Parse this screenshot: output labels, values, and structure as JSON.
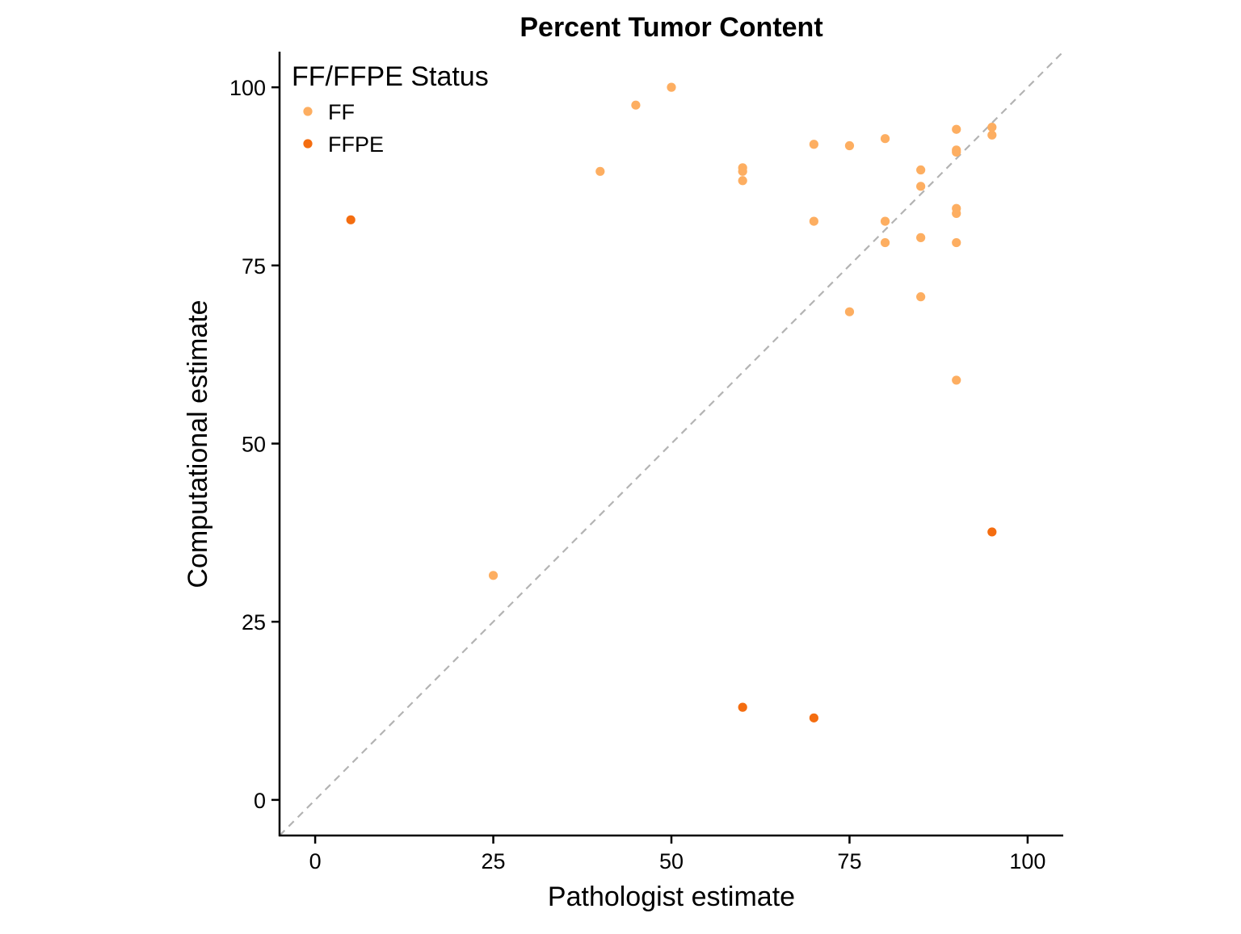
{
  "chart_data": {
    "type": "scatter",
    "title": "Percent Tumor Content",
    "xlabel": "Pathologist estimate",
    "ylabel": "Computational estimate",
    "xlim": [
      -5,
      105
    ],
    "ylim": [
      -5,
      105
    ],
    "x_ticks": [
      0,
      25,
      50,
      75,
      100
    ],
    "y_ticks": [
      0,
      25,
      50,
      75,
      100
    ],
    "x_tick_labels": [
      "0",
      "25",
      "50",
      "75",
      "100"
    ],
    "y_tick_labels": [
      "0",
      "25",
      "50",
      "75",
      "100"
    ],
    "grid": false,
    "reference_line": {
      "type": "identity",
      "style": "dashed",
      "color": "#b3b3b3"
    },
    "legend": {
      "title": "FF/FFPE Status",
      "position": "top-left"
    },
    "series": [
      {
        "name": "FF",
        "color": "#fdae61",
        "points": [
          {
            "x": 25,
            "y": 31.5
          },
          {
            "x": 40,
            "y": 88.2
          },
          {
            "x": 45,
            "y": 97.5
          },
          {
            "x": 50,
            "y": 100
          },
          {
            "x": 60,
            "y": 88.7
          },
          {
            "x": 60,
            "y": 88.2
          },
          {
            "x": 60,
            "y": 86.9
          },
          {
            "x": 70,
            "y": 92
          },
          {
            "x": 70,
            "y": 81.2
          },
          {
            "x": 75,
            "y": 91.8
          },
          {
            "x": 75,
            "y": 68.5
          },
          {
            "x": 80,
            "y": 92.8
          },
          {
            "x": 80,
            "y": 81.2
          },
          {
            "x": 80,
            "y": 78.2
          },
          {
            "x": 85,
            "y": 88.4
          },
          {
            "x": 85,
            "y": 86.1
          },
          {
            "x": 85,
            "y": 78.9
          },
          {
            "x": 85,
            "y": 70.6
          },
          {
            "x": 90,
            "y": 94.1
          },
          {
            "x": 90,
            "y": 91.2
          },
          {
            "x": 90,
            "y": 90.9
          },
          {
            "x": 90,
            "y": 83
          },
          {
            "x": 90,
            "y": 82.3
          },
          {
            "x": 90,
            "y": 78.2
          },
          {
            "x": 90,
            "y": 58.9
          },
          {
            "x": 95,
            "y": 94.4
          },
          {
            "x": 95,
            "y": 93.3
          }
        ]
      },
      {
        "name": "FFPE",
        "color": "#f46d10",
        "points": [
          {
            "x": 5,
            "y": 81.4
          },
          {
            "x": 60,
            "y": 13
          },
          {
            "x": 70,
            "y": 11.5
          },
          {
            "x": 95,
            "y": 37.6
          }
        ]
      }
    ]
  }
}
